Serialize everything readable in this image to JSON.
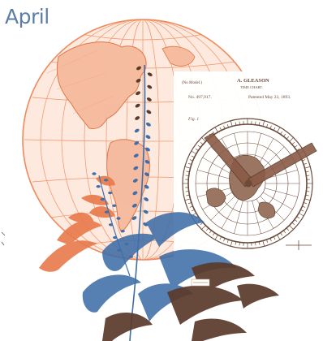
{
  "title": "April",
  "patent": {
    "header_left": "(No Model.)",
    "inventor": "A. GLEASON",
    "subtitle": "TIME CHART.",
    "number": "No. 497,917.",
    "patented": "Patented May 23, 1893.",
    "fig": "Fig. 1"
  },
  "colors": {
    "title": "#5c7ea6",
    "map_orange": "#f08a5d",
    "map_fill": "#fbe3d6",
    "patent_brown": "#6b4a3a",
    "plant_blue": "#3f6ea8",
    "plant_orange": "#e87a4a",
    "leaf_brown": "#5a3a2a"
  }
}
